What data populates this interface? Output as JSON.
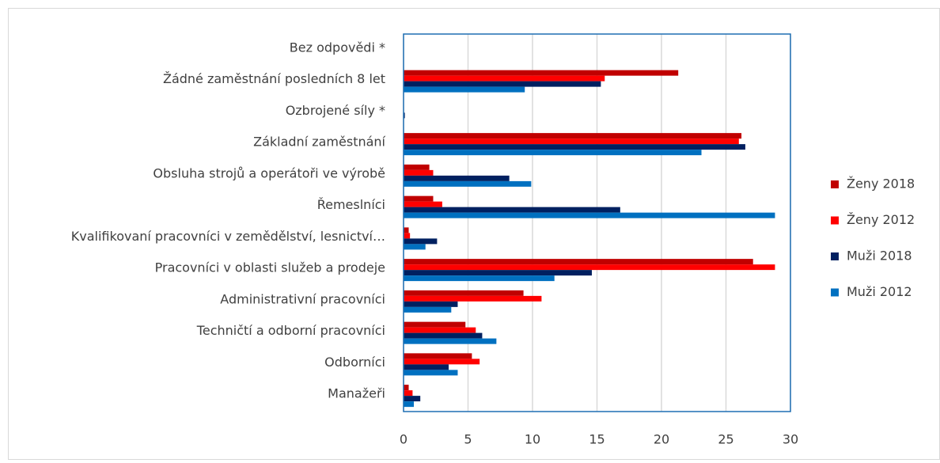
{
  "chart_data": {
    "type": "bar",
    "orientation": "horizontal",
    "categories": [
      "Bez odpovědi *",
      "Žádné zaměstnání posledních 8 let",
      "Ozbrojené síly *",
      "Základní zaměstnání",
      "Obsluha strojů a operátoři ve výrobě",
      "Řemeslníci",
      "Kvalifikovaní pracovníci v zemědělství, lesnictví…",
      "Pracovníci v oblasti služeb a prodeje",
      "Administrativní pracovníci",
      "Techničtí a odborní pracovníci",
      "Odborníci",
      "Manažeři"
    ],
    "series": [
      {
        "name": "Ženy 2018",
        "color": "#c00000",
        "values": [
          0,
          21.3,
          0,
          26.2,
          2.0,
          2.3,
          0.4,
          27.1,
          9.3,
          4.8,
          5.3,
          0.4
        ]
      },
      {
        "name": "Ženy 2012",
        "color": "#ff0000",
        "values": [
          0,
          15.6,
          0,
          26.0,
          2.3,
          3.0,
          0.5,
          28.8,
          10.7,
          5.6,
          5.9,
          0.7
        ]
      },
      {
        "name": "Muži 2018",
        "color": "#002060",
        "values": [
          0,
          15.3,
          0.1,
          26.5,
          8.2,
          16.8,
          2.6,
          14.6,
          4.2,
          6.1,
          3.5,
          1.3
        ]
      },
      {
        "name": "Muži 2012",
        "color": "#0070c0",
        "values": [
          0,
          9.4,
          0,
          23.1,
          9.9,
          28.8,
          1.7,
          11.7,
          3.7,
          7.2,
          4.2,
          0.8
        ]
      }
    ],
    "xlim": [
      0,
      30
    ],
    "xticks": [
      0,
      5,
      10,
      15,
      20,
      25,
      30
    ],
    "grid": true,
    "legend": "right"
  }
}
